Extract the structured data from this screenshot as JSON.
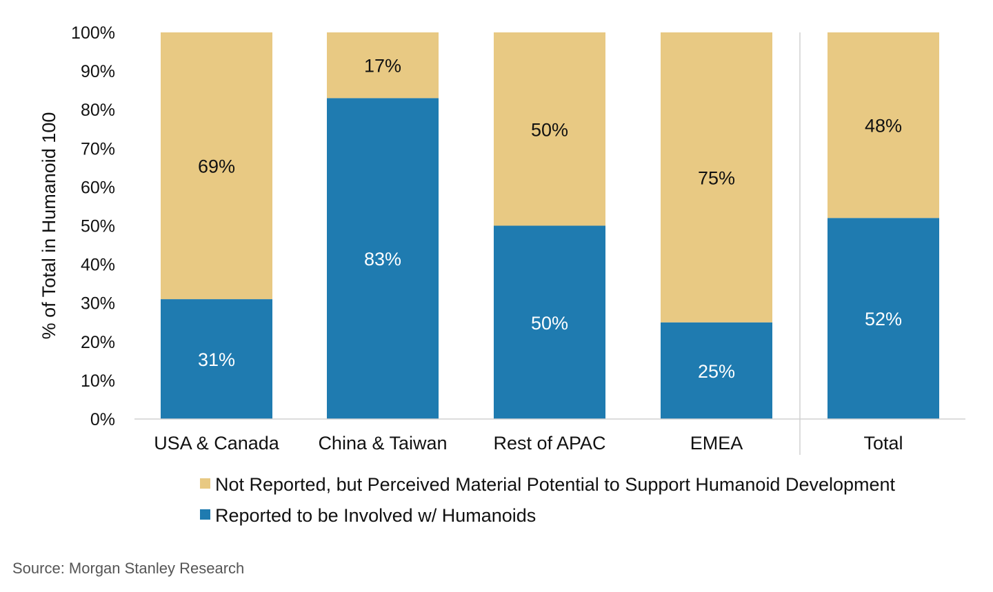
{
  "chart_data": {
    "type": "bar",
    "stacked": true,
    "categories": [
      "USA & Canada",
      "China & Taiwan",
      "Rest of APAC",
      "EMEA",
      "Total"
    ],
    "series": [
      {
        "name": "Reported to be Involved w/ Humanoids",
        "color": "#1f7bb0",
        "values": [
          31,
          83,
          50,
          25,
          52
        ],
        "labels": [
          "31%",
          "83%",
          "50%",
          "25%",
          "52%"
        ]
      },
      {
        "name": "Not Reported, but Perceived Material Potential to Support Humanoid Development",
        "color": "#e8c983",
        "values": [
          69,
          17,
          50,
          75,
          48
        ],
        "labels": [
          "69%",
          "17%",
          "50%",
          "75%",
          "48%"
        ]
      }
    ],
    "ylabel": "% of Total in Humanoid 100",
    "xlabel": "",
    "title": "",
    "ylim": [
      0,
      100
    ],
    "yticks": [
      "0%",
      "10%",
      "20%",
      "30%",
      "40%",
      "50%",
      "60%",
      "70%",
      "80%",
      "90%",
      "100%"
    ],
    "legend_order": [
      1,
      0
    ],
    "legend_position": "bottom",
    "separator_before_category": "Total",
    "grid": false
  },
  "source": "Source: Morgan Stanley Research"
}
